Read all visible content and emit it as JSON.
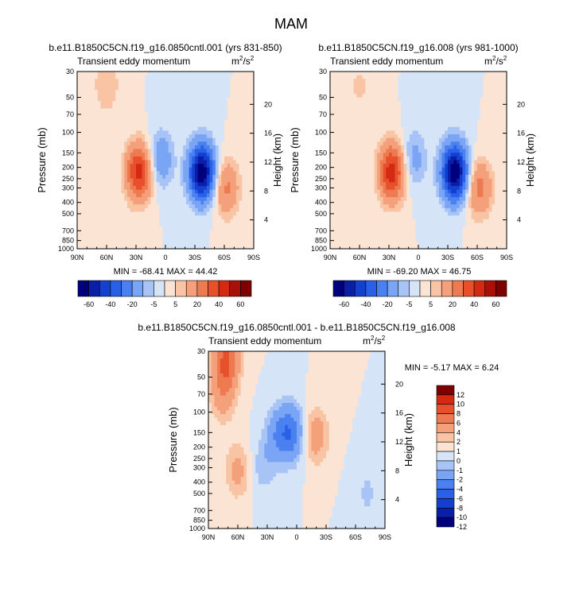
{
  "figure_title": "MAM",
  "colors": {
    "main_levels": [
      "#00007f",
      "#0a1ea8",
      "#1440d0",
      "#2a60e8",
      "#4a80f0",
      "#7aa4f4",
      "#a8c4f6",
      "#d6e4f8",
      "#fbe4d4",
      "#f8c4a4",
      "#f4a07a",
      "#ee7a52",
      "#e8502c",
      "#d42a14",
      "#a81008",
      "#7f0000"
    ],
    "diff_levels": [
      "#00007f",
      "#0a1ea8",
      "#1440d0",
      "#2a60e8",
      "#4a80f0",
      "#7aa4f4",
      "#a8c4f6",
      "#d6e4f8",
      "#fbe4d4",
      "#f8c4a4",
      "#f4a07a",
      "#ee7a52",
      "#e8502c",
      "#d42a14",
      "#7f0000"
    ]
  },
  "chart_data": [
    {
      "type": "heatmap",
      "title": "b.e11.B1850C5CN.f19_g16.0850cntl.001 (yrs 831-850)",
      "left_label": "Transient eddy momentum",
      "units_base": "m",
      "units_sup": "2",
      "units_tail": "/s",
      "units_sup2": "2",
      "xlabel": "",
      "ylabel": "Pressure (mb)",
      "y2label": "Height (km)",
      "x_ticks": [
        "90N",
        "60N",
        "30N",
        "0",
        "30S",
        "60S",
        "90S"
      ],
      "y_ticks": [
        "30",
        "50",
        "70",
        "100",
        "150",
        "200",
        "250",
        "300",
        "400",
        "500",
        "700",
        "850",
        "1000"
      ],
      "y2_ticks": [
        "20",
        "16",
        "12",
        "8",
        "4"
      ],
      "stats": "MIN = -68.41  MAX =  44.42",
      "colorbar_labels": [
        "-60",
        "-40",
        "-20",
        "-5",
        "5",
        "20",
        "40",
        "60"
      ],
      "features": [
        {
          "lat": 27,
          "p": 220,
          "amp": 44.4
        },
        {
          "lat": -37,
          "p": 220,
          "amp": -68.4
        },
        {
          "lat": 5,
          "p": 170,
          "amp": -18
        },
        {
          "lat": -62,
          "p": 300,
          "amp": 22
        },
        {
          "lat": 60,
          "p": 40,
          "amp": 10
        }
      ]
    },
    {
      "type": "heatmap",
      "title": "b.e11.B1850C5CN.f19_g16.008 (yrs 981-1000)",
      "left_label": "Transient eddy momentum",
      "units_base": "m",
      "units_sup": "2",
      "units_tail": "/s",
      "units_sup2": "2",
      "xlabel": "",
      "ylabel": "Pressure (mb)",
      "y2label": "Height (km)",
      "x_ticks": [
        "90N",
        "60N",
        "30N",
        "0",
        "30S",
        "60S",
        "90S"
      ],
      "y_ticks": [
        "30",
        "50",
        "70",
        "100",
        "150",
        "200",
        "250",
        "300",
        "400",
        "500",
        "700",
        "850",
        "1000"
      ],
      "y2_ticks": [
        "20",
        "16",
        "12",
        "8",
        "4"
      ],
      "stats": "MIN = -69.20  MAX =  46.75",
      "colorbar_labels": [
        "-60",
        "-40",
        "-20",
        "-5",
        "5",
        "20",
        "40",
        "60"
      ],
      "features": [
        {
          "lat": 27,
          "p": 220,
          "amp": 46.8
        },
        {
          "lat": -37,
          "p": 220,
          "amp": -69.2
        },
        {
          "lat": 5,
          "p": 170,
          "amp": -14
        },
        {
          "lat": -62,
          "p": 300,
          "amp": 24
        },
        {
          "lat": 60,
          "p": 40,
          "amp": 6
        }
      ]
    },
    {
      "type": "heatmap",
      "title": "b.e11.B1850C5CN.f19_g16.0850cntl.001 - b.e11.B1850C5CN.f19_g16.008",
      "left_label": "Transient eddy momentum",
      "units_base": "m",
      "units_sup": "2",
      "units_tail": "/s",
      "units_sup2": "2",
      "xlabel": "",
      "ylabel": "Pressure (mb)",
      "y2label": "Height (km)",
      "x_ticks": [
        "90N",
        "60N",
        "30N",
        "0",
        "30S",
        "60S",
        "90S"
      ],
      "y_ticks": [
        "30",
        "50",
        "70",
        "100",
        "150",
        "200",
        "250",
        "300",
        "400",
        "500",
        "700",
        "850",
        "1000"
      ],
      "y2_ticks": [
        "20",
        "16",
        "12",
        "8",
        "4"
      ],
      "stats": "MIN =  -5.17  MAX =   6.24",
      "colorbar_labels": [
        "12",
        "10",
        "8",
        "6",
        "4",
        "2",
        "1",
        "0",
        "-1",
        "-2",
        "-4",
        "-6",
        "-8",
        "-10",
        "-12"
      ],
      "features": [
        {
          "lat": 72,
          "p": 35,
          "amp": 6.2
        },
        {
          "lat": 75,
          "p": 70,
          "amp": 3
        },
        {
          "lat": 6,
          "p": 150,
          "amp": -5.2
        },
        {
          "lat": 20,
          "p": 160,
          "amp": -3
        },
        {
          "lat": -20,
          "p": 160,
          "amp": 3
        },
        {
          "lat": 60,
          "p": 320,
          "amp": 2.5
        },
        {
          "lat": 35,
          "p": 300,
          "amp": -1.5
        },
        {
          "lat": -72,
          "p": 500,
          "amp": -1.2
        }
      ]
    }
  ]
}
